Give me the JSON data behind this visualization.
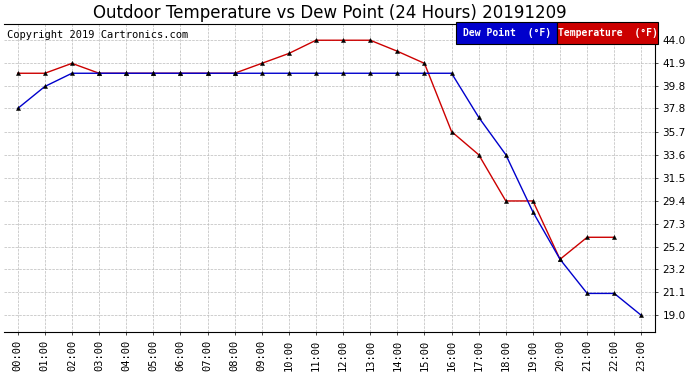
{
  "title": "Outdoor Temperature vs Dew Point (24 Hours) 20191209",
  "copyright": "Copyright 2019 Cartronics.com",
  "background_color": "#ffffff",
  "plot_background": "#ffffff",
  "grid_color": "#bbbbbb",
  "x_labels": [
    "00:00",
    "01:00",
    "02:00",
    "03:00",
    "04:00",
    "05:00",
    "06:00",
    "07:00",
    "08:00",
    "09:00",
    "10:00",
    "11:00",
    "12:00",
    "13:00",
    "14:00",
    "15:00",
    "16:00",
    "17:00",
    "18:00",
    "19:00",
    "20:00",
    "21:00",
    "22:00",
    "23:00"
  ],
  "y_ticks": [
    19.0,
    21.1,
    23.2,
    25.2,
    27.3,
    29.4,
    31.5,
    33.6,
    35.7,
    37.8,
    39.8,
    41.9,
    44.0
  ],
  "temperature_data": [
    41.0,
    41.0,
    41.9,
    41.0,
    41.0,
    41.0,
    41.0,
    41.0,
    41.0,
    41.9,
    42.8,
    44.0,
    44.0,
    44.0,
    43.0,
    41.9,
    35.7,
    33.6,
    29.4,
    29.4,
    24.1,
    26.1,
    26.1,
    null
  ],
  "dewpoint_data": [
    37.8,
    39.8,
    41.0,
    41.0,
    41.0,
    41.0,
    41.0,
    41.0,
    41.0,
    41.0,
    41.0,
    41.0,
    41.0,
    41.0,
    41.0,
    41.0,
    41.0,
    37.0,
    33.6,
    28.4,
    24.1,
    21.0,
    21.0,
    19.0
  ],
  "temp_color": "#cc0000",
  "dew_color": "#0000cc",
  "legend_dew_bg": "#0000cc",
  "legend_temp_bg": "#cc0000",
  "legend_text_color": "#ffffff",
  "ylim": [
    17.5,
    45.5
  ],
  "title_fontsize": 12,
  "axis_fontsize": 7.5,
  "copyright_fontsize": 7.5
}
